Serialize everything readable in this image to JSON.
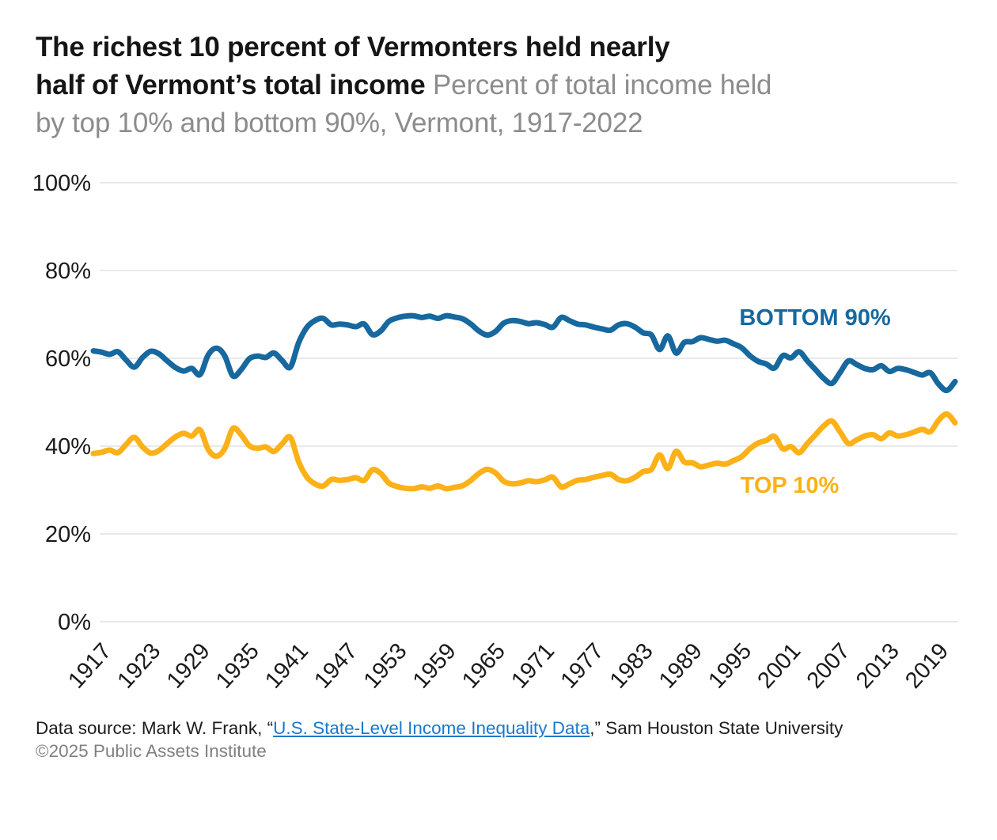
{
  "page": {
    "background": "#ffffff"
  },
  "title": {
    "line1_bold": "The richest 10 percent of Vermonters held nearly",
    "line2_bold": "half of Vermont’s total income",
    "line2_subtitle": "Percent of total income held",
    "line3_subtitle": "by top 10% and bottom 90%, Vermont, 1917-2022"
  },
  "footer": {
    "source_prefix": "Data source: Mark W. Frank, “",
    "source_link_text": "U.S. State-Level Income Inequality Data",
    "source_suffix": ",” Sam Houston State University",
    "copyright": "©2025 Public Assets Institute"
  },
  "colors": {
    "grid": "#e2e2e2",
    "axis_text": "#1a1a1a",
    "title_text": "#151515",
    "subtitle_text": "#8c8c8c",
    "link": "#1a78cc",
    "copyright_text": "#808080",
    "bottom90_blue": "#16689e",
    "top10_yellow": "#fbb117"
  },
  "chart_data": {
    "type": "line",
    "title": "Percent of total income held by top 10% and bottom 90%, Vermont, 1917-2022",
    "x_range": [
      1917,
      2022
    ],
    "years": [
      1917,
      1918,
      1919,
      1920,
      1921,
      1922,
      1923,
      1924,
      1925,
      1926,
      1927,
      1928,
      1929,
      1930,
      1931,
      1932,
      1933,
      1934,
      1935,
      1936,
      1937,
      1938,
      1939,
      1940,
      1941,
      1942,
      1943,
      1944,
      1945,
      1946,
      1947,
      1948,
      1949,
      1950,
      1951,
      1952,
      1953,
      1954,
      1955,
      1956,
      1957,
      1958,
      1959,
      1960,
      1961,
      1962,
      1963,
      1964,
      1965,
      1966,
      1967,
      1968,
      1969,
      1970,
      1971,
      1972,
      1973,
      1974,
      1975,
      1976,
      1977,
      1978,
      1979,
      1980,
      1981,
      1982,
      1983,
      1984,
      1985,
      1986,
      1987,
      1988,
      1989,
      1990,
      1991,
      1992,
      1993,
      1994,
      1995,
      1996,
      1997,
      1998,
      1999,
      2000,
      2001,
      2002,
      2003,
      2004,
      2005,
      2006,
      2007,
      2008,
      2009,
      2010,
      2011,
      2012,
      2013,
      2014,
      2015,
      2016,
      2017,
      2018,
      2019,
      2020,
      2021,
      2022
    ],
    "y_axis": {
      "min": 0,
      "max": 100,
      "tick_values": [
        0,
        20,
        40,
        60,
        80,
        100
      ],
      "tick_labels": [
        "0%",
        "20%",
        "40%",
        "60%",
        "80%",
        "100%"
      ],
      "grid": "horizontal-only"
    },
    "x_axis": {
      "tick_years": [
        1917,
        1923,
        1929,
        1935,
        1941,
        1947,
        1953,
        1959,
        1965,
        1971,
        1977,
        1983,
        1989,
        1995,
        2001,
        2007,
        2013,
        2019
      ],
      "label_rotation_deg": -48
    },
    "legend": "inline-annotations",
    "series": [
      {
        "key": "bottom-90",
        "name": "BOTTOM 90%",
        "color": "#16689e",
        "values": [
          61.7,
          61.4,
          60.9,
          61.5,
          59.6,
          58.0,
          60.2,
          61.6,
          61.0,
          59.4,
          57.9,
          57.1,
          57.7,
          56.3,
          60.8,
          62.3,
          60.6,
          56.0,
          57.4,
          59.9,
          60.5,
          60.2,
          61.2,
          59.5,
          58.0,
          63.5,
          67.0,
          68.6,
          69.1,
          67.6,
          67.8,
          67.6,
          67.2,
          67.8,
          65.4,
          66.2,
          68.4,
          69.2,
          69.6,
          69.7,
          69.3,
          69.6,
          69.1,
          69.7,
          69.4,
          69.0,
          67.8,
          66.2,
          65.3,
          66.1,
          68.0,
          68.6,
          68.4,
          67.9,
          68.1,
          67.7,
          67.1,
          69.3,
          68.6,
          67.8,
          67.6,
          67.1,
          66.7,
          66.4,
          67.6,
          67.9,
          67.1,
          65.8,
          65.3,
          62.0,
          65.1,
          61.2,
          63.6,
          63.8,
          64.7,
          64.3,
          63.9,
          64.1,
          63.3,
          62.4,
          60.6,
          59.3,
          58.7,
          57.8,
          60.6,
          60.1,
          61.5,
          59.4,
          57.4,
          55.4,
          54.3,
          56.8,
          59.4,
          58.6,
          57.7,
          57.4,
          58.3,
          57.0,
          57.7,
          57.4,
          56.8,
          56.2,
          56.7,
          54.1,
          52.7,
          54.7
        ]
      },
      {
        "key": "top-10",
        "name": "TOP 10%",
        "color": "#fbb117",
        "values": [
          38.3,
          38.6,
          39.1,
          38.5,
          40.4,
          42.0,
          39.8,
          38.4,
          39.0,
          40.6,
          42.1,
          42.9,
          42.3,
          43.7,
          39.2,
          37.7,
          39.4,
          44.0,
          42.6,
          40.1,
          39.5,
          39.8,
          38.8,
          40.5,
          42.0,
          36.5,
          33.0,
          31.4,
          30.9,
          32.4,
          32.2,
          32.4,
          32.8,
          32.2,
          34.6,
          33.8,
          31.6,
          30.8,
          30.4,
          30.3,
          30.7,
          30.4,
          30.9,
          30.3,
          30.6,
          31.0,
          32.2,
          33.8,
          34.7,
          33.9,
          32.0,
          31.4,
          31.6,
          32.1,
          31.9,
          32.3,
          32.9,
          30.7,
          31.4,
          32.2,
          32.4,
          32.9,
          33.3,
          33.6,
          32.4,
          32.1,
          32.9,
          34.2,
          34.7,
          38.0,
          34.9,
          38.8,
          36.4,
          36.2,
          35.3,
          35.7,
          36.1,
          35.9,
          36.7,
          37.6,
          39.4,
          40.7,
          41.3,
          42.2,
          39.4,
          39.9,
          38.5,
          40.6,
          42.6,
          44.6,
          45.7,
          43.2,
          40.6,
          41.4,
          42.3,
          42.6,
          41.7,
          43.0,
          42.3,
          42.6,
          43.2,
          43.8,
          43.3,
          45.9,
          47.3,
          45.3
        ]
      }
    ]
  }
}
